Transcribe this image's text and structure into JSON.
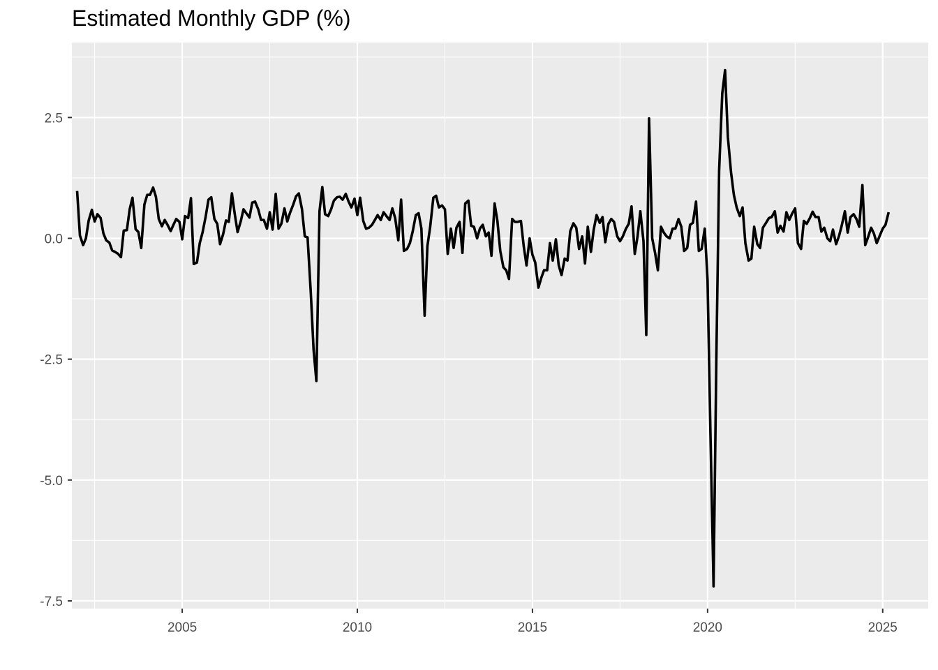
{
  "chart_data": {
    "type": "line",
    "title": "Estimated Monthly GDP (%)",
    "xlabel": "",
    "ylabel": "",
    "xlim": [
      2001.85,
      2026.3
    ],
    "ylim": [
      -7.66,
      4.05
    ],
    "x_ticks": [
      2005,
      2010,
      2015,
      2020,
      2025
    ],
    "x_tick_labels": [
      "2005",
      "2010",
      "2015",
      "2020",
      "2025"
    ],
    "y_ticks": [
      2.5,
      0.0,
      -2.5,
      -5.0,
      -7.5
    ],
    "y_tick_labels": [
      "2.5",
      "0.0",
      "-2.5",
      "-5.0",
      "-7.5"
    ],
    "grid": true,
    "legend": "none",
    "colors": {
      "panel": "#EBEBEB",
      "grid": "#FFFFFF",
      "line": "#000000",
      "tick_text": "#4D4D4D"
    },
    "series": [
      {
        "x": [
          2002.0,
          2002.08,
          2002.17,
          2002.25,
          2002.33,
          2002.42,
          2002.5,
          2002.58,
          2002.67,
          2002.75,
          2002.83,
          2002.92,
          2003.0,
          2003.08,
          2003.17,
          2003.25,
          2003.33,
          2003.42,
          2003.5,
          2003.58,
          2003.67,
          2003.75,
          2003.83,
          2003.92,
          2004.0,
          2004.08,
          2004.17,
          2004.25,
          2004.33,
          2004.42,
          2004.5,
          2004.58,
          2004.67,
          2004.75,
          2004.83,
          2004.92,
          2005.0,
          2005.08,
          2005.17,
          2005.25,
          2005.33,
          2005.42,
          2005.5,
          2005.58,
          2005.67,
          2005.75,
          2005.83,
          2005.92,
          2006.0,
          2006.08,
          2006.17,
          2006.25,
          2006.33,
          2006.42,
          2006.5,
          2006.58,
          2006.67,
          2006.75,
          2006.83,
          2006.92,
          2007.0,
          2007.08,
          2007.17,
          2007.25,
          2007.33,
          2007.42,
          2007.5,
          2007.58,
          2007.67,
          2007.75,
          2007.83,
          2007.92,
          2008.0,
          2008.08,
          2008.17,
          2008.25,
          2008.33,
          2008.42,
          2008.5,
          2008.58,
          2008.67,
          2008.75,
          2008.83,
          2008.92,
          2009.0,
          2009.08,
          2009.17,
          2009.25,
          2009.33,
          2009.42,
          2009.5,
          2009.58,
          2009.67,
          2009.75,
          2009.83,
          2009.92,
          2010.0,
          2010.08,
          2010.17,
          2010.25,
          2010.33,
          2010.42,
          2010.5,
          2010.58,
          2010.67,
          2010.75,
          2010.83,
          2010.92,
          2011.0,
          2011.08,
          2011.17,
          2011.25,
          2011.33,
          2011.42,
          2011.5,
          2011.58,
          2011.67,
          2011.75,
          2011.83,
          2011.92,
          2012.0,
          2012.08,
          2012.17,
          2012.25,
          2012.33,
          2012.42,
          2012.5,
          2012.58,
          2012.67,
          2012.75,
          2012.83,
          2012.92,
          2013.0,
          2013.08,
          2013.17,
          2013.25,
          2013.33,
          2013.42,
          2013.5,
          2013.58,
          2013.67,
          2013.75,
          2013.83,
          2013.92,
          2014.0,
          2014.08,
          2014.17,
          2014.25,
          2014.33,
          2014.42,
          2014.5,
          2014.58,
          2014.67,
          2014.75,
          2014.83,
          2014.92,
          2015.0,
          2015.08,
          2015.17,
          2015.25,
          2015.33,
          2015.42,
          2015.5,
          2015.58,
          2015.67,
          2015.75,
          2015.83,
          2015.92,
          2016.0,
          2016.08,
          2016.17,
          2016.25,
          2016.33,
          2016.42,
          2016.5,
          2016.58,
          2016.67,
          2016.75,
          2016.83,
          2016.92,
          2017.0,
          2017.08,
          2017.17,
          2017.25,
          2017.33,
          2017.42,
          2017.5,
          2017.58,
          2017.67,
          2017.75,
          2017.83,
          2017.92,
          2018.0,
          2018.08,
          2018.17,
          2018.25,
          2018.33,
          2018.42,
          2018.5,
          2018.58,
          2018.67,
          2018.75,
          2018.83,
          2018.92,
          2019.0,
          2019.08,
          2019.17,
          2019.25,
          2019.33,
          2019.42,
          2019.5,
          2019.58,
          2019.67,
          2019.75,
          2019.83,
          2019.92,
          2020.0,
          2020.08,
          2020.17,
          2020.25,
          2020.33,
          2020.42,
          2020.5,
          2020.58,
          2020.67,
          2020.75,
          2020.83,
          2020.92,
          2021.0,
          2021.08,
          2021.17,
          2021.25,
          2021.33,
          2021.42,
          2021.5,
          2021.58,
          2021.67,
          2021.75,
          2021.83,
          2021.92,
          2022.0,
          2022.08,
          2022.17,
          2022.25,
          2022.33,
          2022.42,
          2022.5,
          2022.58,
          2022.67,
          2022.75,
          2022.83,
          2022.92,
          2023.0,
          2023.08,
          2023.17,
          2023.25,
          2023.33,
          2023.42,
          2023.5,
          2023.58,
          2023.67,
          2023.75,
          2023.83,
          2023.92,
          2024.0,
          2024.08,
          2024.17,
          2024.25,
          2024.33,
          2024.42,
          2024.5,
          2024.58,
          2024.67,
          2024.75,
          2024.83,
          2024.92,
          2025.0,
          2025.08,
          2025.17
        ],
        "values": [
          0.98,
          0.06,
          -0.14,
          0.0,
          0.37,
          0.59,
          0.35,
          0.5,
          0.42,
          0.1,
          -0.04,
          -0.09,
          -0.25,
          -0.28,
          -0.32,
          -0.39,
          0.16,
          0.17,
          0.6,
          0.84,
          0.19,
          0.13,
          -0.2,
          0.7,
          0.9,
          0.9,
          1.05,
          0.86,
          0.4,
          0.25,
          0.38,
          0.28,
          0.15,
          0.28,
          0.4,
          0.34,
          -0.02,
          0.46,
          0.42,
          0.83,
          -0.53,
          -0.5,
          -0.1,
          0.12,
          0.45,
          0.8,
          0.85,
          0.4,
          0.3,
          -0.12,
          0.09,
          0.37,
          0.34,
          0.93,
          0.5,
          0.13,
          0.35,
          0.6,
          0.52,
          0.43,
          0.74,
          0.76,
          0.6,
          0.38,
          0.38,
          0.2,
          0.54,
          0.18,
          0.92,
          0.2,
          0.3,
          0.62,
          0.35,
          0.53,
          0.7,
          0.87,
          0.93,
          0.6,
          0.04,
          0.02,
          -1.12,
          -2.3,
          -2.95,
          0.56,
          1.06,
          0.5,
          0.46,
          0.6,
          0.78,
          0.85,
          0.86,
          0.8,
          0.92,
          0.76,
          0.64,
          0.82,
          0.48,
          0.84,
          0.36,
          0.2,
          0.22,
          0.28,
          0.38,
          0.48,
          0.38,
          0.54,
          0.46,
          0.38,
          0.62,
          0.42,
          -0.04,
          0.8,
          -0.26,
          -0.22,
          -0.1,
          0.14,
          0.48,
          0.52,
          0.2,
          -1.6,
          -0.16,
          0.24,
          0.84,
          0.88,
          0.64,
          0.68,
          0.6,
          -0.32,
          0.2,
          -0.2,
          0.22,
          0.34,
          -0.3,
          0.72,
          0.78,
          0.26,
          0.24,
          0.0,
          0.2,
          0.28,
          0.04,
          0.12,
          -0.36,
          0.72,
          0.36,
          -0.26,
          -0.6,
          -0.66,
          -0.84,
          0.4,
          0.34,
          0.34,
          0.36,
          -0.16,
          -0.56,
          0.0,
          -0.34,
          -0.5,
          -1.02,
          -0.82,
          -0.66,
          -0.66,
          -0.1,
          -0.46,
          -0.02,
          -0.56,
          -0.76,
          -0.42,
          -0.46,
          0.15,
          0.31,
          0.22,
          -0.22,
          0.04,
          -0.52,
          0.24,
          -0.28,
          0.18,
          0.48,
          0.32,
          0.44,
          -0.08,
          0.3,
          0.4,
          0.34,
          0.04,
          -0.06,
          0.04,
          0.2,
          0.3,
          0.66,
          -0.32,
          0.04,
          0.56,
          -0.06,
          -2.0,
          2.48,
          0.0,
          -0.3,
          -0.66,
          0.24,
          0.12,
          0.04,
          0.0,
          0.2,
          0.2,
          0.4,
          0.24,
          -0.26,
          -0.2,
          0.28,
          0.32,
          0.76,
          -0.26,
          -0.22,
          0.2,
          -0.86,
          -4.0,
          -7.2,
          -2.5,
          1.4,
          3.0,
          3.48,
          2.1,
          1.36,
          0.9,
          0.64,
          0.46,
          0.64,
          -0.1,
          -0.46,
          -0.42,
          0.24,
          -0.12,
          -0.2,
          0.22,
          0.32,
          0.42,
          0.44,
          0.56,
          0.12,
          0.26,
          0.14,
          0.54,
          0.38,
          0.52,
          0.62,
          -0.1,
          -0.22,
          0.36,
          0.3,
          0.42,
          0.55,
          0.44,
          0.44,
          0.14,
          0.22,
          0.0,
          -0.06,
          0.18,
          -0.12,
          0.04,
          0.26,
          0.56,
          0.12,
          0.44,
          0.5,
          0.4,
          0.24,
          1.1,
          -0.14,
          0.02,
          0.22,
          0.1,
          -0.1,
          0.06,
          0.2,
          0.28,
          0.54
        ]
      }
    ]
  }
}
